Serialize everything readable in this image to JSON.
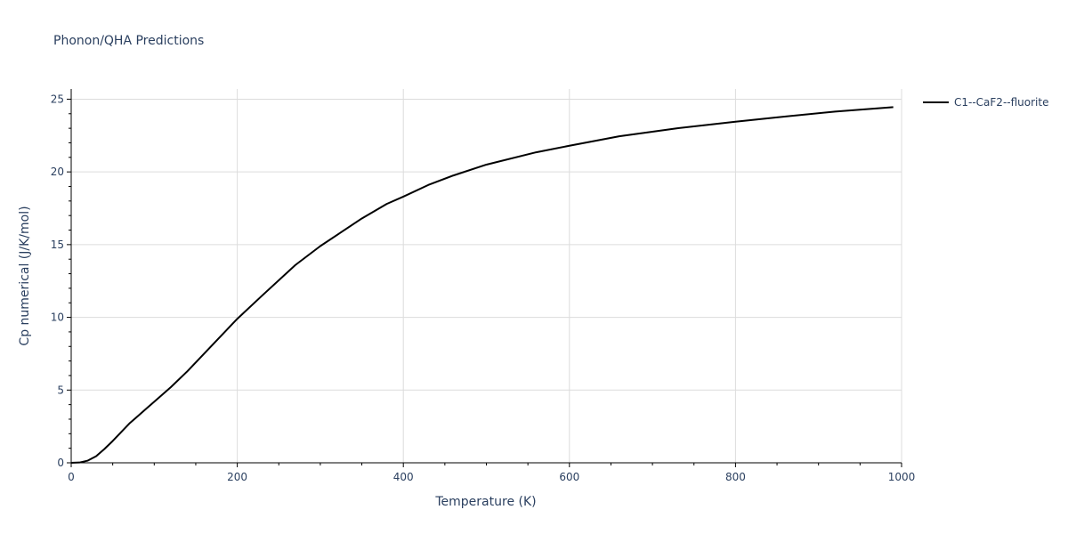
{
  "chart_data": {
    "type": "line",
    "title": "Phonon/QHA Predictions",
    "xlabel": "Temperature (K)",
    "ylabel": "Cp numerical (J/K/mol)",
    "xlim": [
      0,
      1000
    ],
    "ylim": [
      0,
      25.7
    ],
    "xticks": [
      0,
      200,
      400,
      600,
      800,
      1000
    ],
    "yticks": [
      0,
      5,
      10,
      15,
      20,
      25
    ],
    "grid": true,
    "legend_position": "top-right",
    "series": [
      {
        "name": "C1--CaF2--fluorite",
        "color": "#000000",
        "x": [
          0,
          10,
          20,
          30,
          40,
          50,
          60,
          70,
          80,
          90,
          100,
          120,
          140,
          160,
          180,
          200,
          230,
          270,
          300,
          350,
          380,
          400,
          430,
          460,
          500,
          560,
          600,
          660,
          730,
          800,
          850,
          920,
          990
        ],
        "y": [
          0,
          0.02,
          0.15,
          0.45,
          0.95,
          1.5,
          2.1,
          2.7,
          3.2,
          3.7,
          4.2,
          5.2,
          6.3,
          7.5,
          8.7,
          9.9,
          11.5,
          13.6,
          14.9,
          16.8,
          17.8,
          18.3,
          19.1,
          19.75,
          20.5,
          21.35,
          21.8,
          22.45,
          23.0,
          23.45,
          23.75,
          24.15,
          24.45
        ]
      }
    ]
  }
}
